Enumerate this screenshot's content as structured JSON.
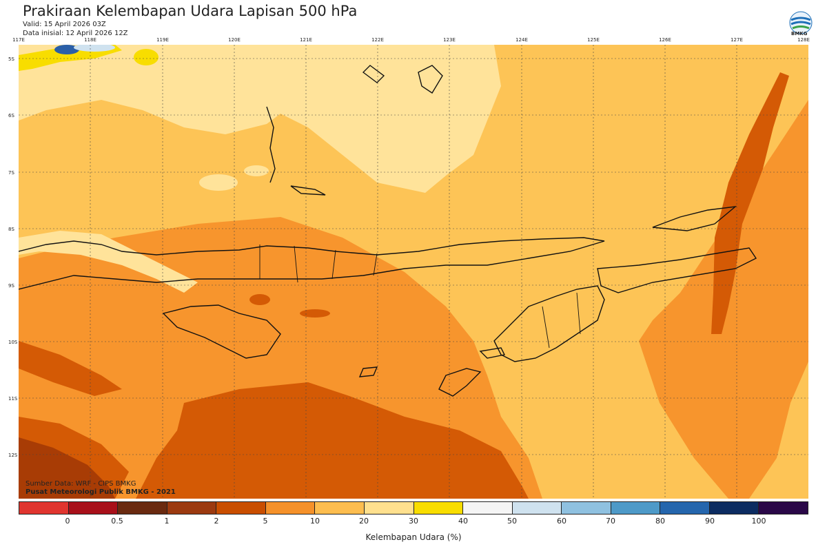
{
  "header": {
    "title": "Prakiraan Kelembapan Udara Lapisan 500 hPa",
    "valid": "Valid: 15 April 2026 03Z",
    "init": "Data inisial: 12 April 2026 12Z",
    "logo_text": "BMKG"
  },
  "axes": {
    "lon_labels": [
      "117E",
      "118E",
      "119E",
      "120E",
      "121E",
      "122E",
      "123E",
      "124E",
      "125E",
      "126E",
      "127E",
      "128E"
    ],
    "lat_labels": [
      "5S",
      "6S",
      "7S",
      "8S",
      "9S",
      "10S",
      "11S",
      "12S"
    ]
  },
  "credits": {
    "line1": "Sumber Data: WRF - CIPS BMKG",
    "line2": "Pusat Meteorologi Publik BMKG - 2021"
  },
  "colorbar": {
    "colors": [
      "#e0352f",
      "#a8101a",
      "#6a2a10",
      "#9c3a10",
      "#c94e00",
      "#f5912a",
      "#fdbd4f",
      "#ffe08e",
      "#f8dd00",
      "#f5f5f5",
      "#cfe2ef",
      "#8fc1e0",
      "#4e9ac8",
      "#2566ad",
      "#0c2c61",
      "#2a0848"
    ],
    "ticks": [
      "0",
      "0.5",
      "1",
      "2",
      "5",
      "10",
      "20",
      "30",
      "40",
      "50",
      "60",
      "70",
      "80",
      "90",
      "100"
    ],
    "label": "Kelembapan Udara (%)"
  },
  "map_colors": {
    "lightest": "#ffe39a",
    "light": "#fdc456",
    "mid": "#f7952d",
    "dark": "#d45a05",
    "darkest": "#a83c05",
    "humid_yellow": "#f8dd00",
    "humid_blue": "#2a5fa8",
    "coast": "#111111"
  }
}
